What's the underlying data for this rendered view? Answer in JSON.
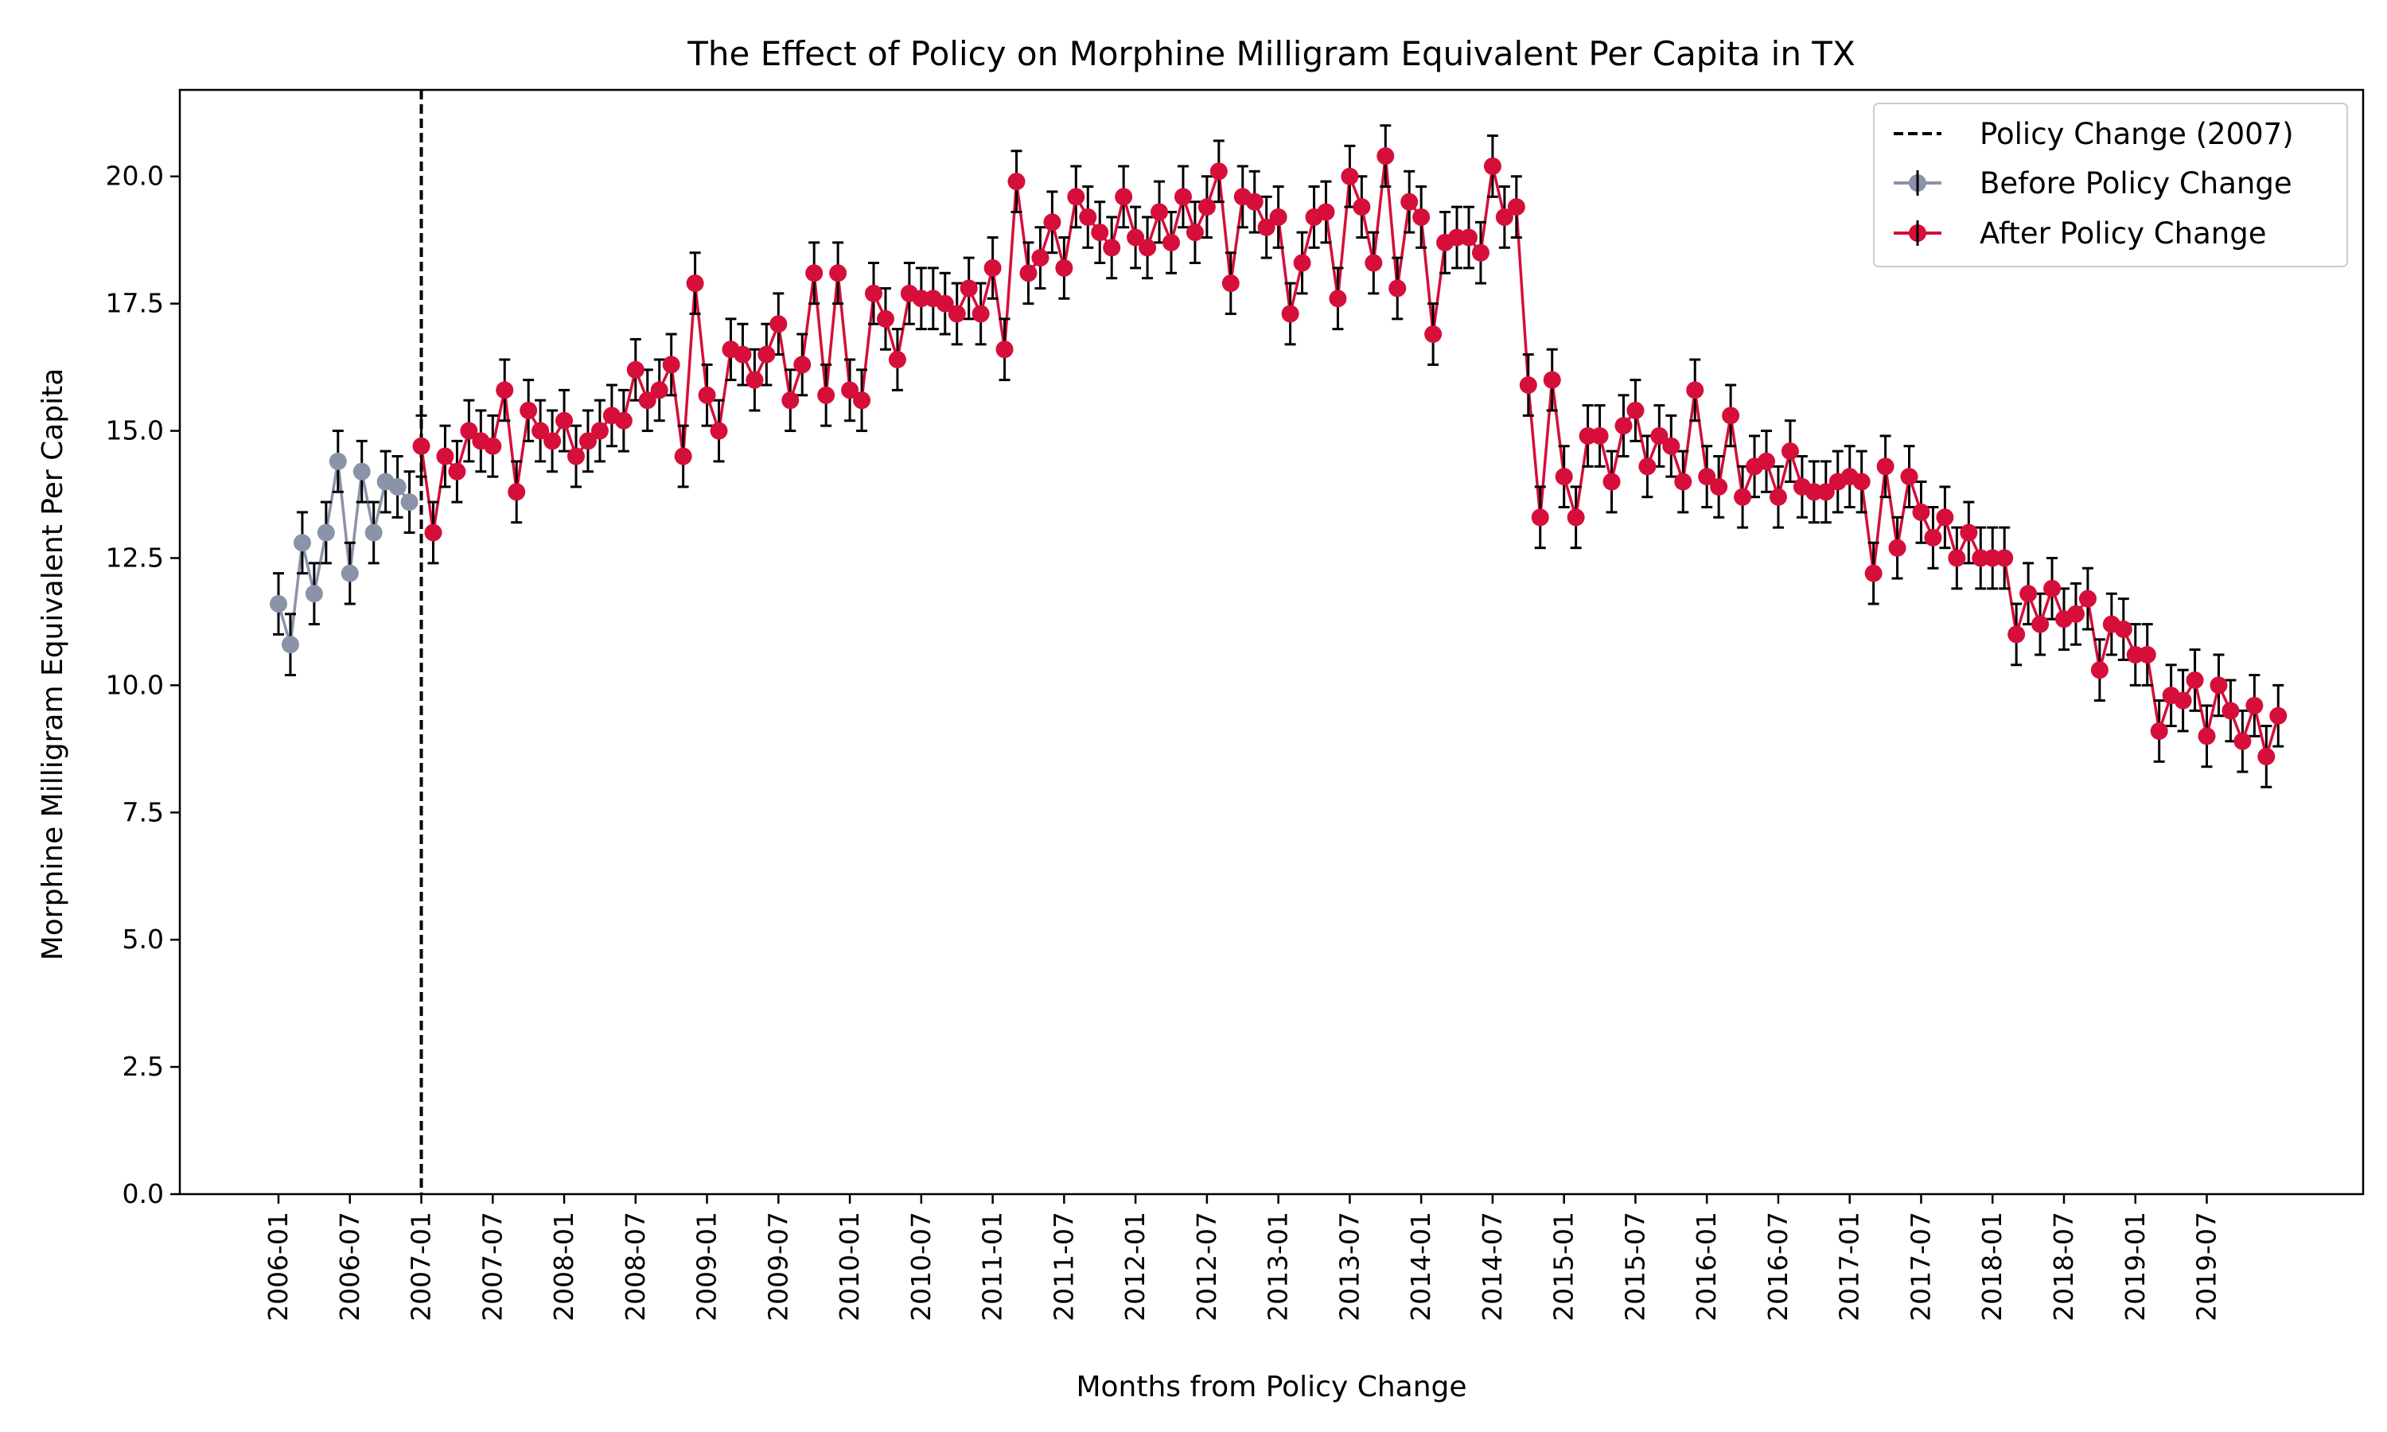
{
  "chart_data": {
    "type": "line",
    "title": "The Effect of Policy on Morphine Milligram Equivalent Per Capita in TX",
    "xlabel": "Months from Policy Change",
    "ylabel": "Morphine Milligram Equivalent Per Capita",
    "ylim": [
      0,
      21.7
    ],
    "y_ticks": [
      "0.0",
      "2.5",
      "5.0",
      "7.5",
      "10.0",
      "12.5",
      "15.0",
      "17.5",
      "20.0"
    ],
    "x_ticks": [
      "2006-01",
      "2006-07",
      "2007-01",
      "2007-07",
      "2008-01",
      "2008-07",
      "2009-01",
      "2009-07",
      "2010-01",
      "2010-07",
      "2011-01",
      "2011-07",
      "2012-01",
      "2012-07",
      "2013-01",
      "2013-07",
      "2014-01",
      "2014-07",
      "2015-01",
      "2015-07",
      "2016-01",
      "2016-07",
      "2017-01",
      "2017-07",
      "2018-01",
      "2018-07",
      "2019-01",
      "2019-07"
    ],
    "start_month": "2006-01",
    "error_bar_halfwidth": 0.6,
    "policy_line": {
      "month": "2007-01",
      "label": "Policy Change (2007)",
      "color": "#000000"
    },
    "legend_position": "top-right",
    "grid": false,
    "series": [
      {
        "name": "Before Policy Change",
        "color": "#8a93a8",
        "start_month": "2006-01",
        "values": [
          11.6,
          10.8,
          12.8,
          11.8,
          13.0,
          14.4,
          12.2,
          14.2,
          13.0,
          14.0,
          13.9,
          13.6
        ]
      },
      {
        "name": "After Policy Change",
        "color": "#d50f3a",
        "start_month": "2007-01",
        "values": [
          14.7,
          13.0,
          14.5,
          14.2,
          15.0,
          14.8,
          14.7,
          15.8,
          13.8,
          15.4,
          15.0,
          14.8,
          15.2,
          14.5,
          14.8,
          15.0,
          15.3,
          15.2,
          16.2,
          15.6,
          15.8,
          16.3,
          14.5,
          17.9,
          15.7,
          15.0,
          16.6,
          16.5,
          16.0,
          16.5,
          17.1,
          15.6,
          16.3,
          18.1,
          15.7,
          18.1,
          15.8,
          15.6,
          17.7,
          17.2,
          16.4,
          17.7,
          17.6,
          17.6,
          17.5,
          17.3,
          17.8,
          17.3,
          18.2,
          16.6,
          19.9,
          18.1,
          18.4,
          19.1,
          18.2,
          19.6,
          19.2,
          18.9,
          18.6,
          19.6,
          18.8,
          18.6,
          19.3,
          18.7,
          19.6,
          18.9,
          19.4,
          20.1,
          17.9,
          19.6,
          19.5,
          19.0,
          19.2,
          17.3,
          18.3,
          19.2,
          19.3,
          17.6,
          20.0,
          19.4,
          18.3,
          20.4,
          17.8,
          19.5,
          19.2,
          16.9,
          18.7,
          18.8,
          18.8,
          18.5,
          20.2,
          19.2,
          19.4,
          15.9,
          13.3,
          16.0,
          14.1,
          13.3,
          14.9,
          14.9,
          14.0,
          15.1,
          15.4,
          14.3,
          14.9,
          14.7,
          14.0,
          15.8,
          14.1,
          13.9,
          15.3,
          13.7,
          14.3,
          14.4,
          13.7,
          14.6,
          13.9,
          13.8,
          13.8,
          14.0,
          14.1,
          14.0,
          12.2,
          14.3,
          12.7,
          14.1,
          13.4,
          12.9,
          13.3,
          12.5,
          13.0,
          12.5,
          12.5,
          12.5,
          11.0,
          11.8,
          11.2,
          11.9,
          11.3,
          11.4,
          11.7,
          10.3,
          11.2,
          11.1,
          10.6,
          10.6,
          9.1,
          9.8,
          9.7,
          10.1,
          9.0,
          10.0,
          9.5,
          8.9,
          9.6,
          8.6,
          9.4
        ]
      }
    ]
  }
}
